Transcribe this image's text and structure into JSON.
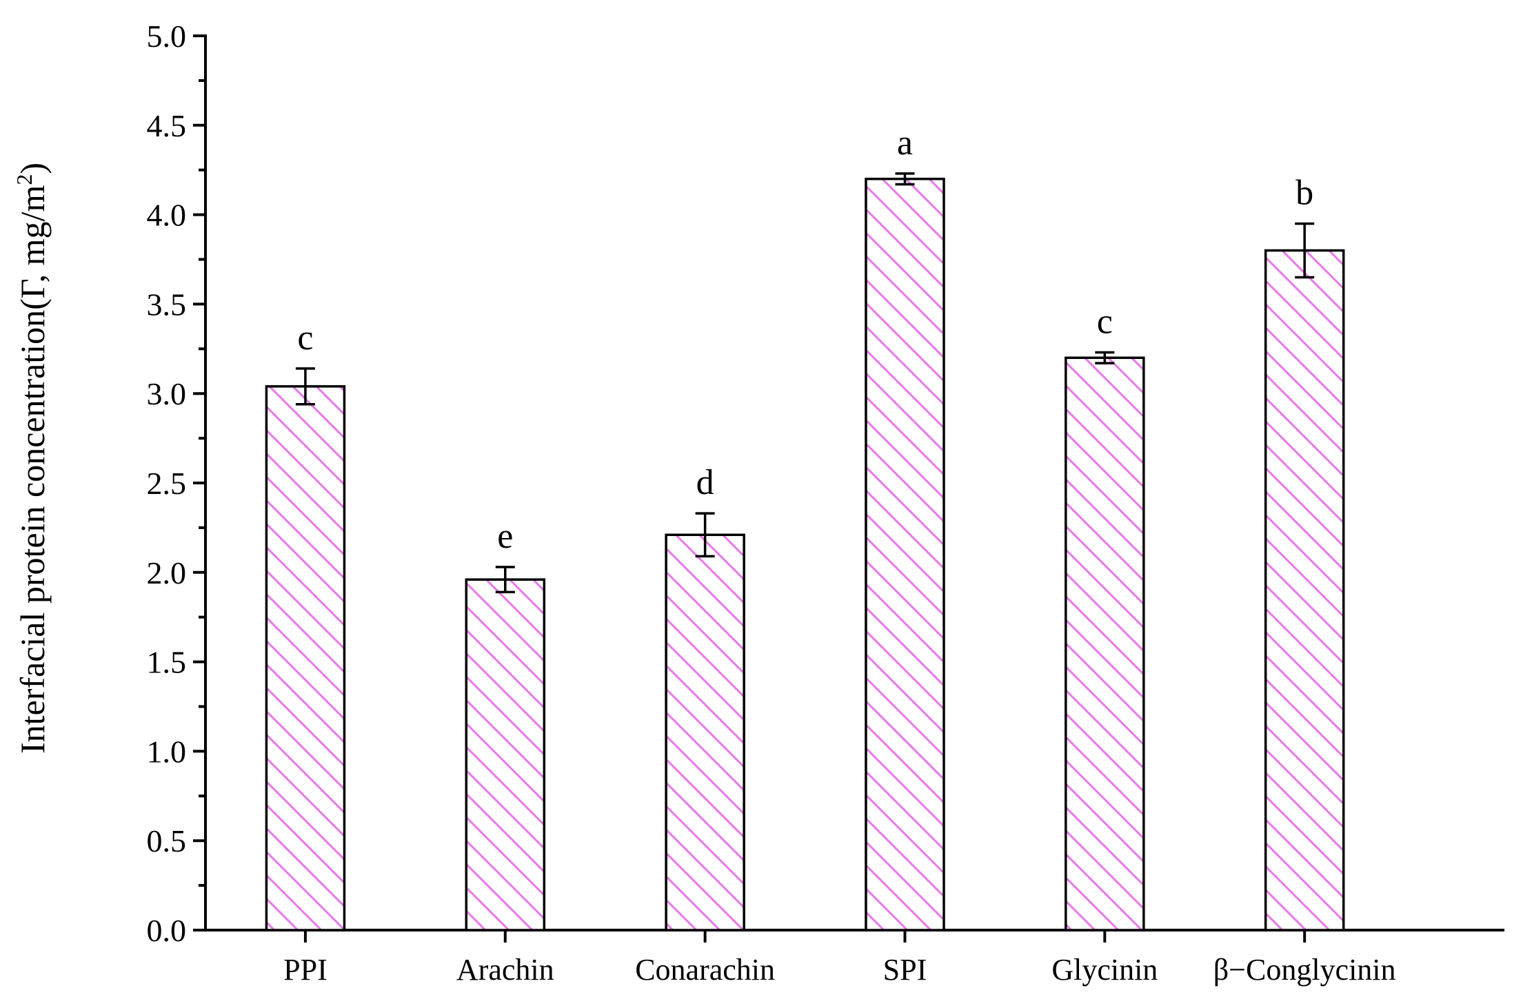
{
  "chart_data": {
    "type": "bar",
    "title": "",
    "xlabel": "",
    "ylabel": "Interfacial protein concentration(Γ, mg/m",
    "ylabel_superscript": "2",
    "ylabel_suffix": ")",
    "ylim": [
      0,
      5
    ],
    "yticks": [
      "0.0",
      "0.5",
      "1.0",
      "1.5",
      "2.0",
      "2.5",
      "3.0",
      "3.5",
      "4.0",
      "4.5",
      "5.0"
    ],
    "categories": [
      "PPI",
      "Arachin",
      "Conarachin",
      "SPI",
      "Glycinin",
      "β−Conglycinin"
    ],
    "values": [
      3.04,
      1.96,
      2.21,
      4.2,
      3.2,
      3.8
    ],
    "errors": [
      0.1,
      0.07,
      0.12,
      0.03,
      0.03,
      0.15
    ],
    "significance": [
      "c",
      "e",
      "d",
      "a",
      "c",
      "b"
    ],
    "grid": false,
    "bar_fill": "#ffffff",
    "hatch_color": "#e879e8"
  }
}
